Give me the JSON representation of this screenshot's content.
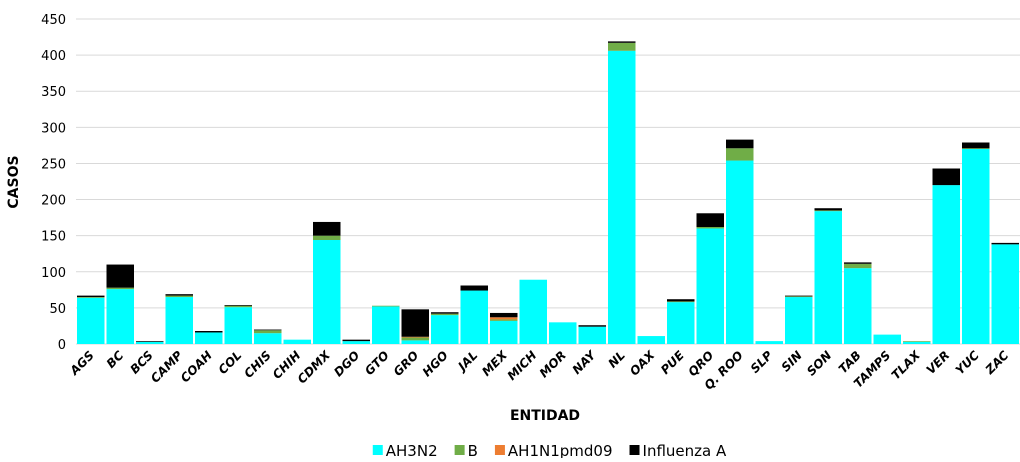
{
  "chart_data": {
    "type": "stacked_bar",
    "x_label": "ENTIDAD",
    "y_label": "CASOS",
    "categories": [
      "AGS",
      "BC",
      "BCS",
      "CAMP",
      "COAH",
      "COL",
      "CHIS",
      "CHIH",
      "CDMX",
      "DGO",
      "GTO",
      "GRO",
      "HGO",
      "JAL",
      "MEX",
      "MICH",
      "MOR",
      "NAY",
      "NL",
      "OAX",
      "PUE",
      "QRO",
      "Q. ROO",
      "SLP",
      "SIN",
      "SON",
      "TAB",
      "TAMPS",
      "TLAX",
      "VER",
      "YUC",
      "ZAC"
    ],
    "series": [
      {
        "name": "AH3N2",
        "color": "#00ffff",
        "values": [
          64,
          76,
          3,
          65,
          16,
          51,
          15,
          6,
          144,
          4,
          52,
          5,
          40,
          74,
          32,
          89,
          30,
          24,
          406,
          11,
          58,
          160,
          254,
          4,
          65,
          184,
          105,
          13,
          3,
          220,
          270,
          138
        ]
      },
      {
        "name": "B",
        "color": "#70ad47",
        "values": [
          1,
          2,
          0,
          2,
          0,
          2,
          4,
          0,
          6,
          0,
          1,
          4,
          2,
          0,
          2,
          0,
          0,
          0,
          11,
          0,
          1,
          2,
          17,
          0,
          1,
          1,
          6,
          0,
          1,
          0,
          1,
          0
        ]
      },
      {
        "name": "AH1N1pmd09",
        "color": "#ed7d31",
        "values": [
          0,
          0,
          0,
          0,
          0,
          0,
          0,
          0,
          0,
          0,
          0,
          1,
          0,
          0,
          3,
          0,
          0,
          0,
          0,
          0,
          0,
          0,
          0,
          0,
          0,
          0,
          0,
          0,
          0,
          0,
          0,
          0
        ]
      },
      {
        "name": "Influenza A",
        "color": "#000000",
        "values": [
          2,
          32,
          1,
          2,
          2,
          1,
          1,
          0,
          19,
          2,
          0,
          38,
          2,
          7,
          6,
          0,
          0,
          2,
          2,
          0,
          3,
          19,
          12,
          0,
          1,
          3,
          2,
          0,
          0,
          23,
          8,
          2
        ]
      }
    ],
    "ylim": [
      0,
      450
    ],
    "yticks": [
      0,
      50,
      100,
      150,
      200,
      250,
      300,
      350,
      400,
      450
    ],
    "grid": true,
    "legend": "bottom"
  }
}
